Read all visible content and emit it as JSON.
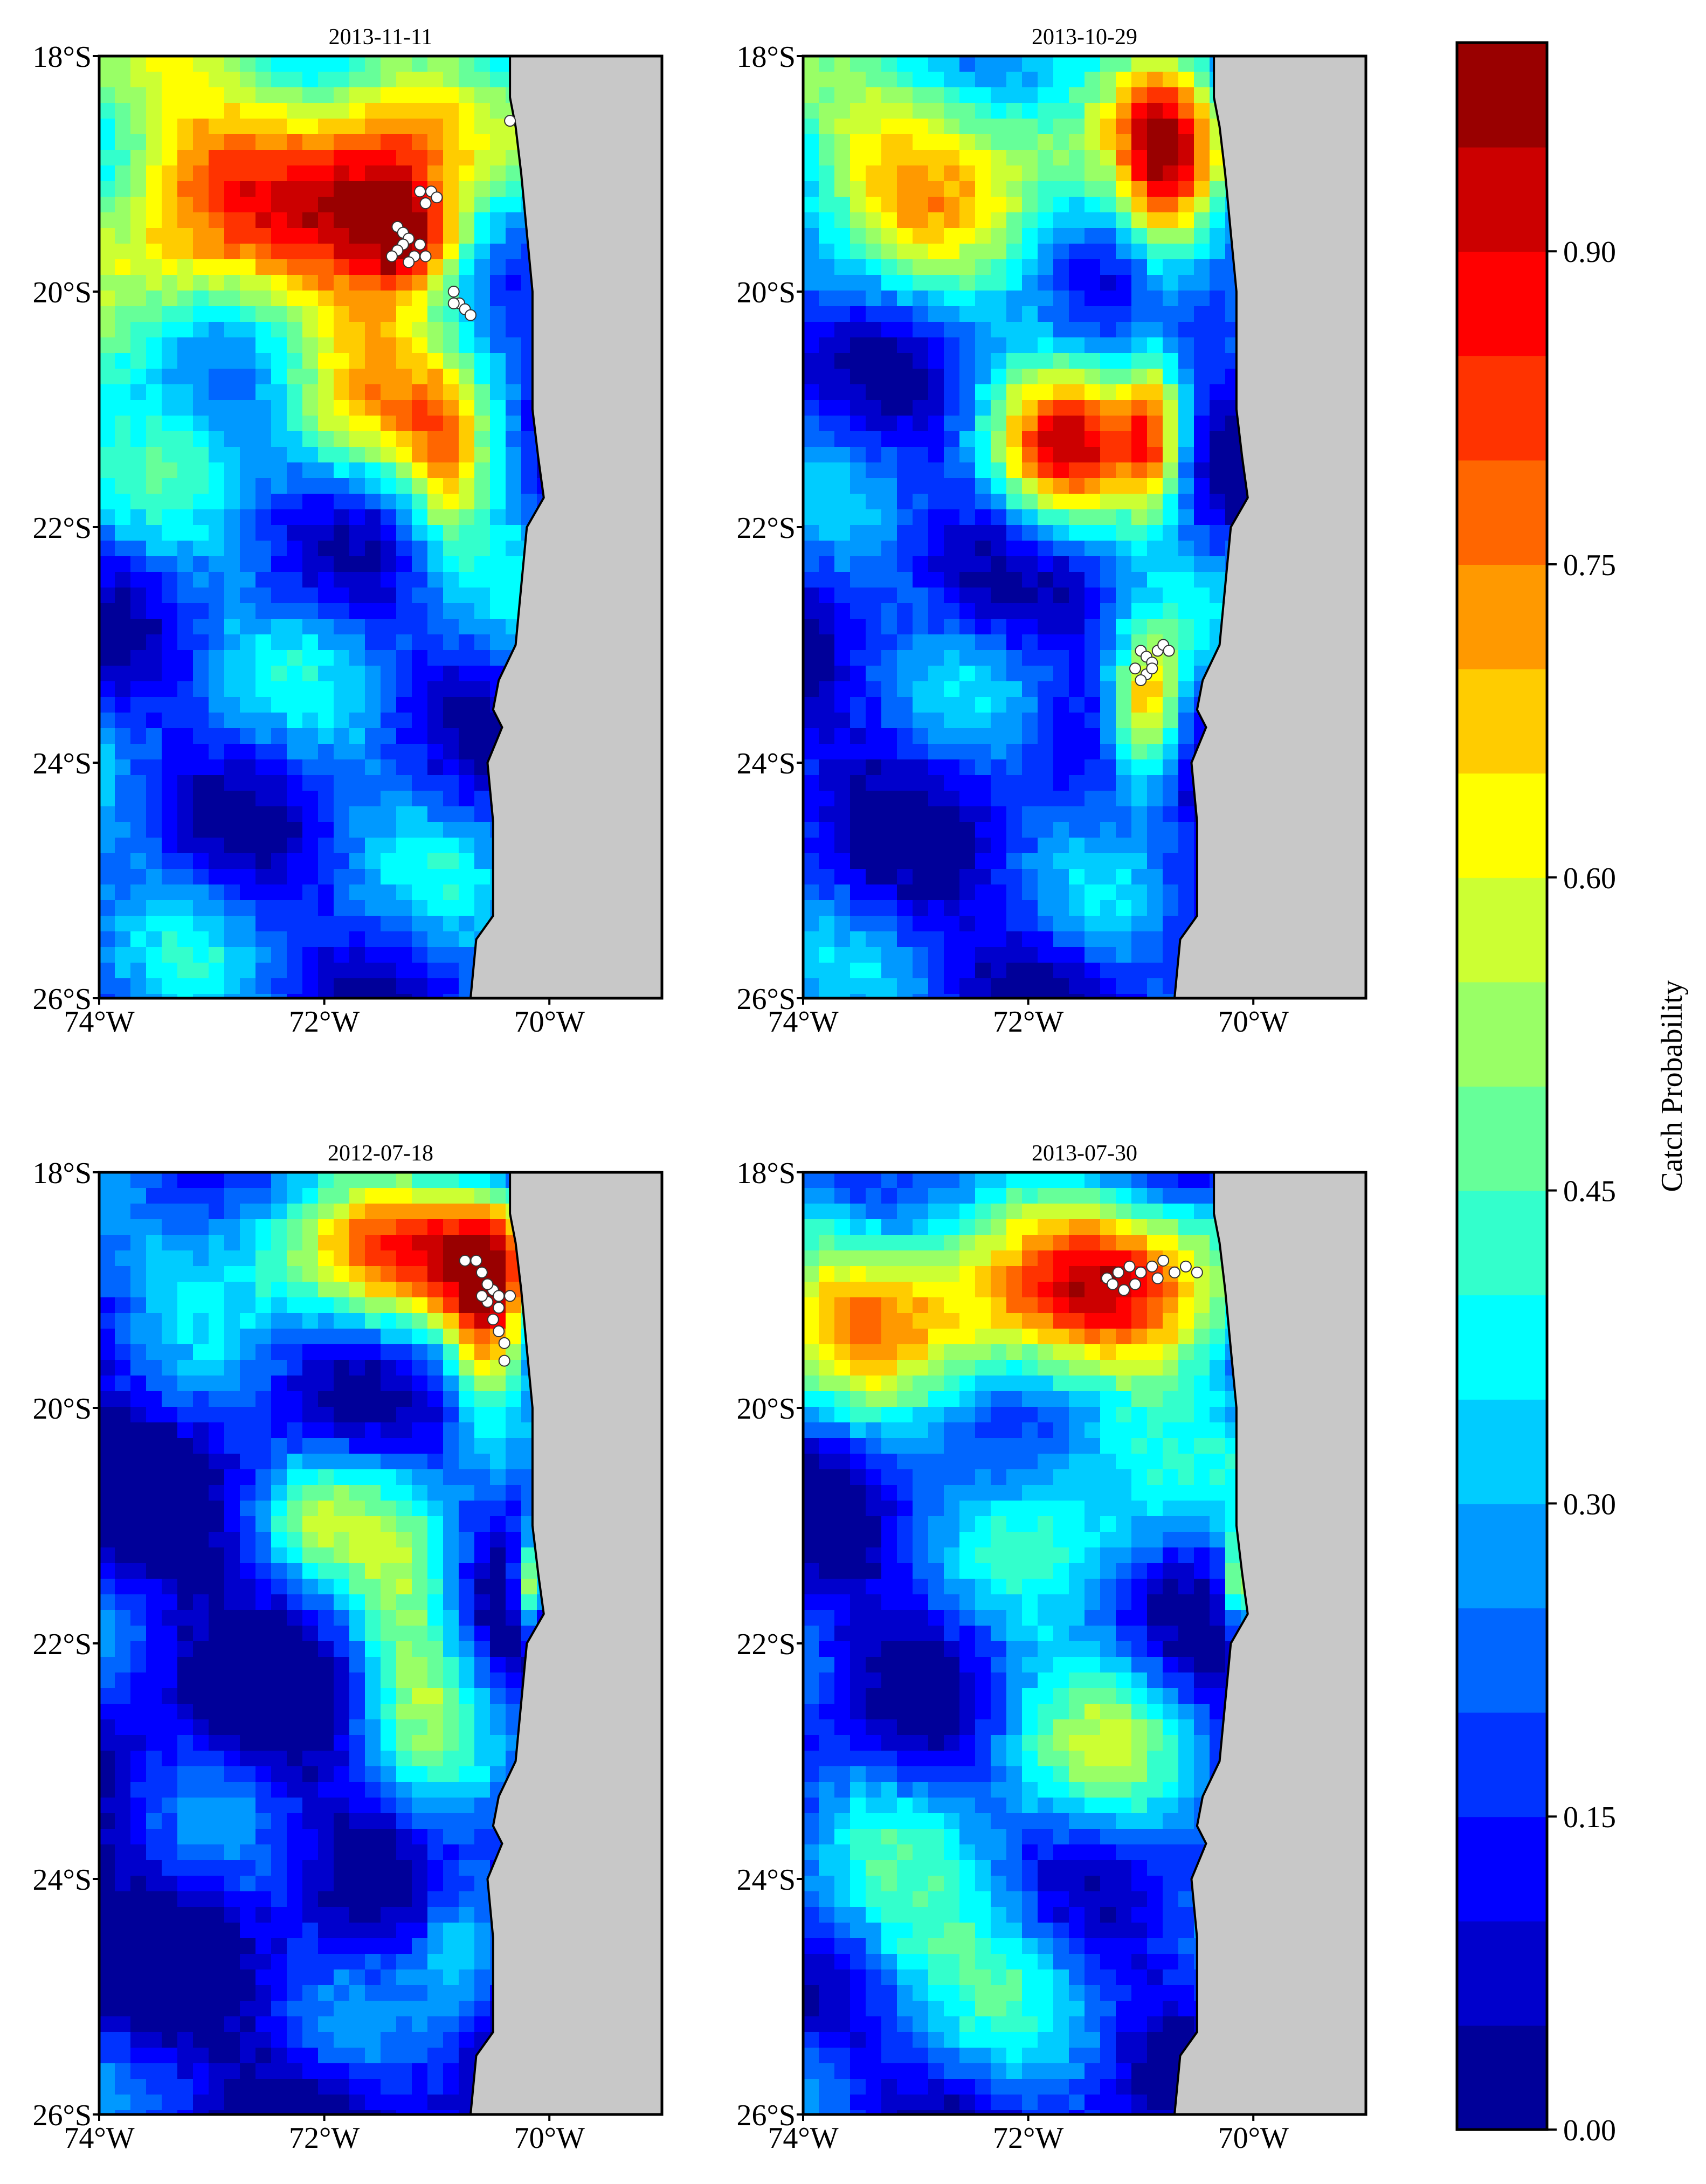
{
  "figure": {
    "panels": [
      {
        "title": "2013-11-11",
        "points": [
          [
            -71.35,
            -19.45
          ],
          [
            -71.3,
            -19.5
          ],
          [
            -71.25,
            -19.55
          ],
          [
            -71.3,
            -19.6
          ],
          [
            -71.35,
            -19.65
          ],
          [
            -71.2,
            -19.7
          ],
          [
            -71.15,
            -19.6
          ],
          [
            -71.1,
            -19.7
          ],
          [
            -71.25,
            -19.75
          ],
          [
            -71.4,
            -19.7
          ],
          [
            -71.15,
            -19.15
          ],
          [
            -71.05,
            -19.15
          ],
          [
            -71.1,
            -19.25
          ],
          [
            -71.0,
            -19.2
          ],
          [
            -70.85,
            -20.0
          ],
          [
            -70.8,
            -20.1
          ],
          [
            -70.75,
            -20.15
          ],
          [
            -70.7,
            -20.2
          ],
          [
            -70.85,
            -20.1
          ],
          [
            -70.35,
            -18.55
          ]
        ]
      },
      {
        "title": "2013-10-29",
        "points": [
          [
            -71.0,
            -23.05
          ],
          [
            -70.95,
            -23.1
          ],
          [
            -70.9,
            -23.15
          ],
          [
            -70.85,
            -23.05
          ],
          [
            -70.8,
            -23.0
          ],
          [
            -71.05,
            -23.2
          ],
          [
            -70.95,
            -23.25
          ],
          [
            -71.0,
            -23.3
          ],
          [
            -70.9,
            -23.2
          ],
          [
            -70.75,
            -23.05
          ]
        ]
      },
      {
        "title": "2012-07-18",
        "points": [
          [
            -70.65,
            -18.75
          ],
          [
            -70.6,
            -18.85
          ],
          [
            -70.55,
            -18.95
          ],
          [
            -70.5,
            -19.0
          ],
          [
            -70.55,
            -19.1
          ],
          [
            -70.45,
            -19.15
          ],
          [
            -70.5,
            -19.25
          ],
          [
            -70.45,
            -19.35
          ],
          [
            -70.4,
            -19.45
          ],
          [
            -70.4,
            -19.6
          ],
          [
            -70.55,
            -18.95
          ],
          [
            -70.6,
            -19.05
          ],
          [
            -70.45,
            -19.05
          ],
          [
            -70.75,
            -18.75
          ],
          [
            -70.35,
            -19.05
          ]
        ]
      },
      {
        "title": "2013-07-30",
        "points": [
          [
            -71.3,
            -18.9
          ],
          [
            -71.2,
            -18.85
          ],
          [
            -71.1,
            -18.8
          ],
          [
            -71.0,
            -18.85
          ],
          [
            -71.25,
            -18.95
          ],
          [
            -71.15,
            -19.0
          ],
          [
            -70.9,
            -18.8
          ],
          [
            -70.8,
            -18.75
          ],
          [
            -70.7,
            -18.85
          ],
          [
            -70.6,
            -18.8
          ],
          [
            -70.5,
            -18.85
          ],
          [
            -70.85,
            -18.9
          ],
          [
            -71.05,
            -18.95
          ]
        ]
      }
    ],
    "x_ticks": [
      "74°W",
      "72°W",
      "70°W"
    ],
    "y_ticks": [
      "18°S",
      "20°S",
      "22°S",
      "24°S",
      "26°S"
    ],
    "x_tick_values": [
      -74,
      -72,
      -70
    ],
    "y_tick_values": [
      -18,
      -20,
      -22,
      -24,
      -26
    ],
    "lon_range": [
      -74,
      -69
    ],
    "lat_range": [
      -26,
      -18
    ],
    "coastline": [
      [
        -70.35,
        -18.35
      ],
      [
        -70.3,
        -18.6
      ],
      [
        -70.25,
        -19.0
      ],
      [
        -70.2,
        -19.5
      ],
      [
        -70.15,
        -20.0
      ],
      [
        -70.15,
        -20.5
      ],
      [
        -70.15,
        -21.0
      ],
      [
        -70.1,
        -21.4
      ],
      [
        -70.05,
        -21.75
      ],
      [
        -70.2,
        -22.0
      ],
      [
        -70.25,
        -22.5
      ],
      [
        -70.3,
        -23.0
      ],
      [
        -70.45,
        -23.3
      ],
      [
        -70.5,
        -23.55
      ],
      [
        -70.42,
        -23.7
      ],
      [
        -70.55,
        -24.0
      ],
      [
        -70.5,
        -24.5
      ],
      [
        -70.5,
        -25.0
      ],
      [
        -70.5,
        -25.3
      ],
      [
        -70.65,
        -25.5
      ],
      [
        -70.7,
        -26.0
      ]
    ],
    "land_color": "#c8c8c8",
    "marker_color": "#ffffff"
  },
  "colorbar": {
    "label": "Catch Probability",
    "ticks": [
      "0.00",
      "0.15",
      "0.30",
      "0.45",
      "0.60",
      "0.75",
      "0.90"
    ],
    "tick_values": [
      0.0,
      0.15,
      0.3,
      0.45,
      0.6,
      0.75,
      0.9
    ],
    "range": [
      0,
      1
    ],
    "levels": 20,
    "colormap": "jet"
  }
}
